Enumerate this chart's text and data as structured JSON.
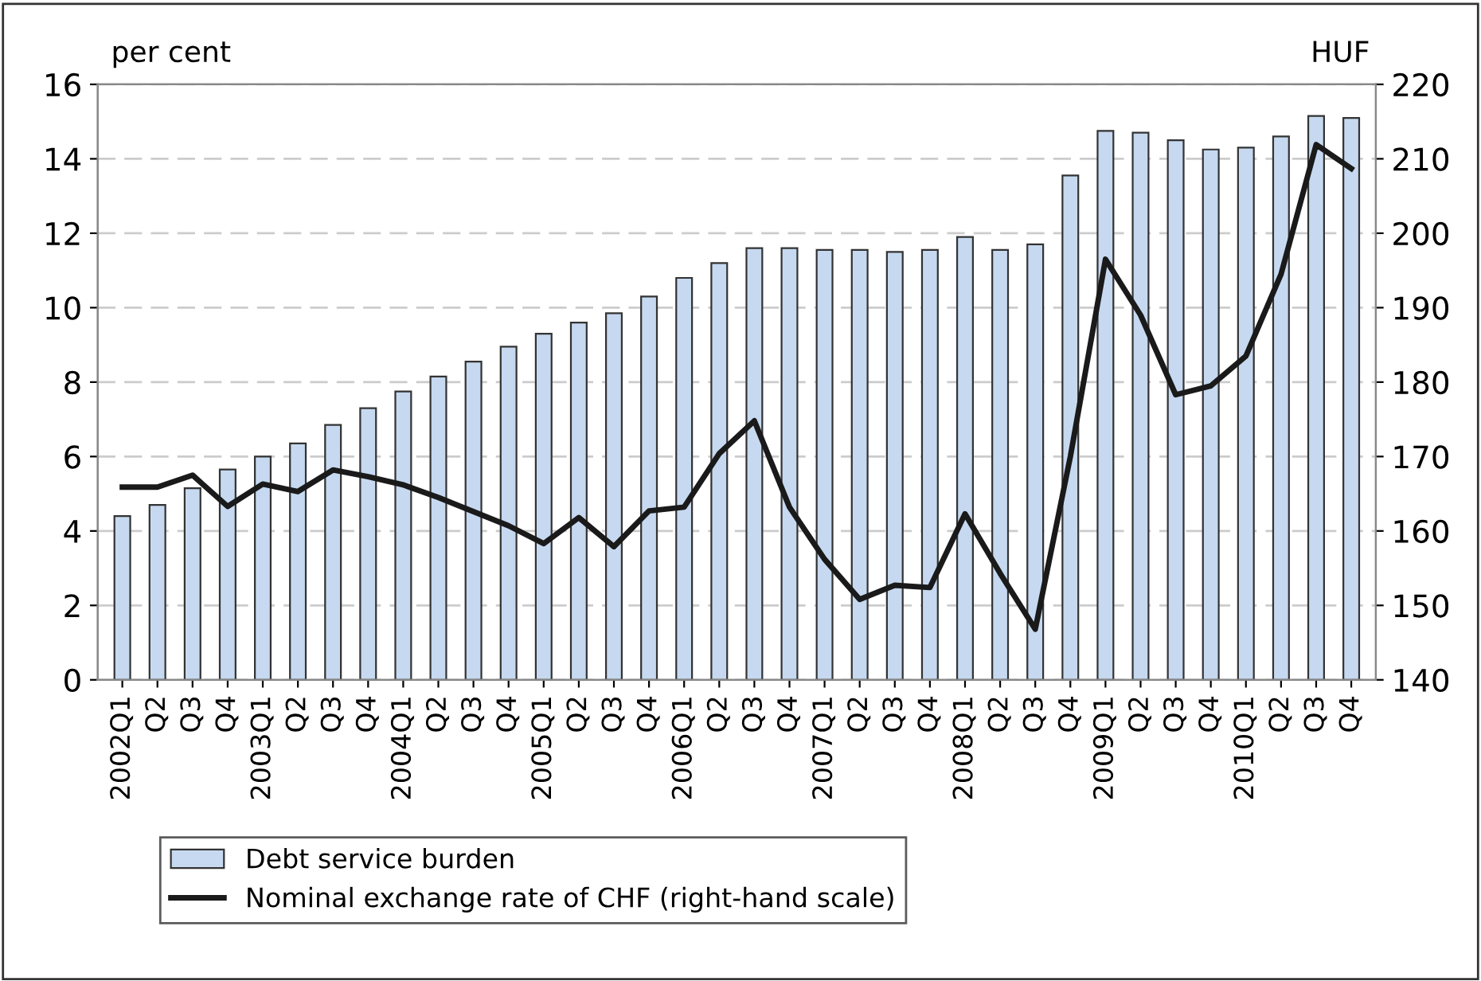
{
  "chart_data": {
    "type": "bar",
    "ylabel": "per cent",
    "y2label": "HUF",
    "categories": [
      "2002Q1",
      "Q2",
      "Q3",
      "Q4",
      "2003Q1",
      "Q2",
      "Q3",
      "Q4",
      "2004Q1",
      "Q2",
      "Q3",
      "Q4",
      "2005Q1",
      "Q2",
      "Q3",
      "Q4",
      "2006Q1",
      "Q2",
      "Q3",
      "Q4",
      "2007Q1",
      "Q2",
      "Q3",
      "Q4",
      "2008Q1",
      "Q2",
      "Q3",
      "Q4",
      "2009Q1",
      "Q2",
      "Q3",
      "Q4",
      "2010Q1",
      "Q2",
      "Q3",
      "Q4"
    ],
    "series": [
      {
        "name": "Debt service burden",
        "color": "#c6d9f0",
        "values": [
          4.4,
          4.7,
          5.15,
          5.65,
          6.0,
          6.35,
          6.85,
          7.3,
          7.75,
          8.15,
          8.55,
          8.95,
          9.3,
          9.6,
          9.85,
          10.3,
          10.8,
          11.2,
          11.6,
          11.6,
          11.55,
          11.55,
          11.5,
          11.55,
          11.9,
          11.55,
          11.7,
          13.55,
          14.75,
          14.7,
          14.5,
          14.25,
          14.3,
          14.6,
          15.15,
          15.1
        ]
      },
      {
        "name": "Nominal exchange rate of CHF (right-hand scale)",
        "type": "line",
        "axis": "y2",
        "color": "#1a1a1a",
        "values": [
          165.9,
          165.9,
          167.5,
          163.3,
          166.3,
          165.3,
          168.2,
          167.3,
          166.2,
          164.5,
          162.6,
          160.7,
          158.3,
          161.8,
          157.9,
          162.7,
          163.2,
          170.4,
          174.8,
          163.2,
          156.2,
          150.8,
          152.7,
          152.4,
          162.3,
          154.3,
          146.8,
          170,
          196.5,
          189,
          178.3,
          179.5,
          183.5,
          194.5,
          211.9,
          208.7
        ]
      }
    ],
    "ylim": [
      0,
      16
    ],
    "yticks": [
      0,
      2,
      4,
      6,
      8,
      10,
      12,
      14,
      16
    ],
    "y2lim": [
      140,
      220
    ],
    "y2ticks": [
      140,
      150,
      160,
      170,
      180,
      190,
      200,
      210,
      220
    ],
    "grid": "y",
    "legend": "bottom",
    "marker": "none",
    "line_style": "solid"
  }
}
